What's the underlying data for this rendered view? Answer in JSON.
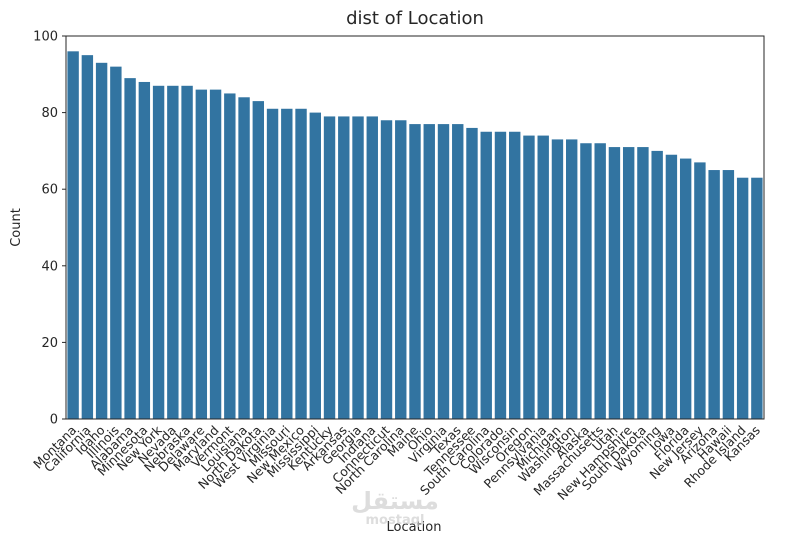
{
  "chart_data": {
    "type": "bar",
    "title": "dist of Location",
    "xlabel": "Location",
    "ylabel": "Count",
    "ylim": [
      0,
      100
    ],
    "yticks": [
      0,
      20,
      40,
      60,
      80,
      100
    ],
    "grid": false,
    "bar_color": "#3274a1",
    "categories": [
      "Montana",
      "California",
      "Idaho",
      "Illinois",
      "Alabama",
      "Minnesota",
      "New York",
      "Nevada",
      "Nebraska",
      "Delaware",
      "Maryland",
      "Vermont",
      "Louisiana",
      "North Dakota",
      "West Virginia",
      "Missouri",
      "New Mexico",
      "Mississippi",
      "Kentucky",
      "Arkansas",
      "Georgia",
      "Indiana",
      "Connecticut",
      "North Carolina",
      "Maine",
      "Ohio",
      "Virginia",
      "Texas",
      "Tennessee",
      "South Carolina",
      "Colorado",
      "Wisconsin",
      "Oregon",
      "Pennsylvania",
      "Michigan",
      "Washington",
      "Alaska",
      "Massachusetts",
      "Utah",
      "New Hampshire",
      "South Dakota",
      "Wyoming",
      "Iowa",
      "Florida",
      "New Jersey",
      "Arizona",
      "Hawaii",
      "Rhode Island",
      "Kansas"
    ],
    "values": [
      96,
      95,
      93,
      92,
      89,
      88,
      87,
      87,
      87,
      86,
      86,
      85,
      84,
      83,
      81,
      81,
      81,
      80,
      79,
      79,
      79,
      79,
      78,
      78,
      77,
      77,
      77,
      77,
      76,
      75,
      75,
      75,
      74,
      74,
      73,
      73,
      72,
      72,
      71,
      71,
      71,
      70,
      69,
      68,
      67,
      65,
      65,
      63,
      63
    ]
  },
  "watermark": {
    "arabic": "مستقل",
    "latin": "mostaql"
  }
}
